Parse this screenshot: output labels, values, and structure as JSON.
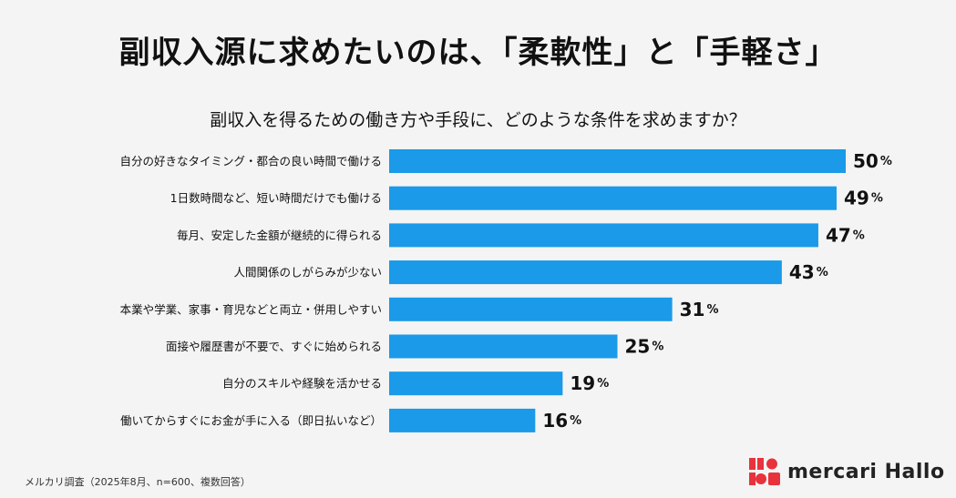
{
  "header": {
    "title": "副収入源に求めたいのは、「柔軟性」と「手軽さ」"
  },
  "chart_data": {
    "type": "bar",
    "orientation": "horizontal",
    "title": "副収入を得るための働き方や手段に、どのような条件を求めますか？",
    "categories": [
      "自分の好きなタイミング・都合の良い時間で働ける",
      "1日数時間など、短い時間だけでも働ける",
      "毎月、安定した金額が継続的に得られる",
      "人間関係のしがらみが少ない",
      "本業や学業、家事・育児などと両立・併用しやすい",
      "面接や履歴書が不要で、すぐに始められる",
      "自分のスキルや経験を活かせる",
      "働いてからすぐにお金が手に入る（即日払いなど）"
    ],
    "values": [
      50,
      49,
      47,
      43,
      31,
      25,
      19,
      16
    ],
    "value_unit": "%",
    "xlim": [
      0,
      50
    ],
    "grid": false,
    "legend": "none",
    "bar_color": "#1a9ae8"
  },
  "footer": {
    "note": "メルカリ調査（2025年8月、n=600、複数回答）",
    "logo_text": "mercari Hallo"
  },
  "colors": {
    "logo_red": "#e8323c",
    "logo_dark": "#222222"
  }
}
